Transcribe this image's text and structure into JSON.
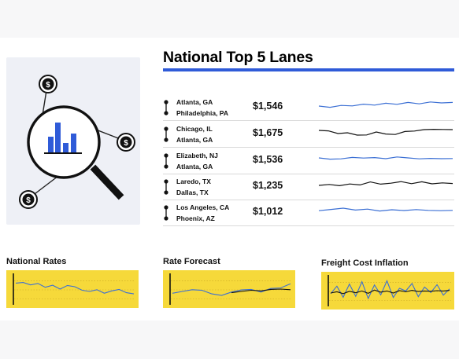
{
  "colors": {
    "accent": "#2f5bd8",
    "panel_yellow": "#f6d93a",
    "hero_bg": "#eef0f6"
  },
  "hero": {
    "icons": [
      "magnifier-icon",
      "bar-chart-icon",
      "dollar-coin-icon"
    ],
    "coin_symbol": "$"
  },
  "lanes": {
    "title": "National Top 5 Lanes",
    "rows": [
      {
        "origin": "Atlanta, GA",
        "destination": "Philadelphia, PA",
        "price": "$1,546",
        "spark_color": "#3b6fd4",
        "trend": [
          5.0,
          4.2,
          5.4,
          5.1,
          6.2,
          5.6,
          6.8,
          6.1,
          7.3,
          6.4,
          7.6,
          7.0,
          7.3
        ]
      },
      {
        "origin": "Chicago, IL",
        "destination": "Atlanta, GA",
        "price": "$1,675",
        "spark_color": "#111111",
        "trend": [
          6.5,
          6.2,
          4.5,
          5.0,
          3.5,
          3.6,
          5.5,
          4.2,
          3.9,
          5.8,
          6.1,
          7.0,
          7.2,
          7.1,
          7.0
        ]
      },
      {
        "origin": "Elizabeth, NJ",
        "destination": "Atlanta, GA",
        "price": "$1,536",
        "spark_color": "#3b6fd4",
        "trend": [
          6.0,
          5.2,
          5.4,
          6.3,
          5.9,
          6.2,
          5.5,
          6.6,
          6.0,
          5.4,
          5.7,
          5.5,
          5.6
        ]
      },
      {
        "origin": "Laredo, TX",
        "destination": "Dallas, TX",
        "price": "$1,235",
        "spark_color": "#111111",
        "trend": [
          5.0,
          5.6,
          4.8,
          5.9,
          5.3,
          7.2,
          5.8,
          6.4,
          7.4,
          6.1,
          7.3,
          6.0,
          6.6,
          6.2
        ]
      },
      {
        "origin": "Los Angeles, CA",
        "destination": "Phoenix, AZ",
        "price": "$1,012",
        "spark_color": "#3b6fd4",
        "trend": [
          5.4,
          6.2,
          7.0,
          5.8,
          6.4,
          5.2,
          6.0,
          5.5,
          6.1,
          5.6,
          5.4,
          5.6
        ]
      }
    ]
  },
  "panels": [
    {
      "title": "National Rates",
      "series": [
        {
          "color": "#3b6fd4",
          "values": [
            7.0,
            7.2,
            6.4,
            6.9,
            5.6,
            6.3,
            5.0,
            6.2,
            5.8,
            4.6,
            4.2,
            4.8,
            3.6,
            4.4,
            4.9,
            3.8,
            3.4
          ]
        }
      ]
    },
    {
      "title": "Rate Forecast",
      "series": [
        {
          "color": "#3b6fd4",
          "values": [
            3.6,
            4.2,
            4.8,
            4.6,
            3.4,
            2.9,
            4.0,
            4.7,
            4.9,
            4.0,
            5.2,
            5.4,
            6.8
          ]
        },
        {
          "color": "#111111",
          "values": [
            null,
            null,
            null,
            null,
            null,
            null,
            3.8,
            4.2,
            4.6,
            4.4,
            4.9,
            5.0,
            4.8
          ]
        }
      ]
    },
    {
      "title": "Freight Cost Inflation",
      "series": [
        {
          "color": "#3b6fd4",
          "values": [
            4.0,
            6.5,
            2.8,
            7.2,
            3.1,
            8.0,
            2.4,
            6.9,
            3.6,
            8.3,
            2.7,
            5.8,
            4.9,
            7.4,
            3.0,
            6.2,
            4.4,
            7.0,
            3.5,
            5.6
          ]
        },
        {
          "color": "#111111",
          "values": [
            4.2,
            4.6,
            4.0,
            4.8,
            4.3,
            4.9,
            4.1,
            5.2,
            4.5,
            4.9,
            4.2,
            5.0,
            4.6,
            5.1,
            4.7,
            4.9,
            4.8,
            5.0,
            4.9,
            5.1
          ]
        }
      ]
    }
  ]
}
